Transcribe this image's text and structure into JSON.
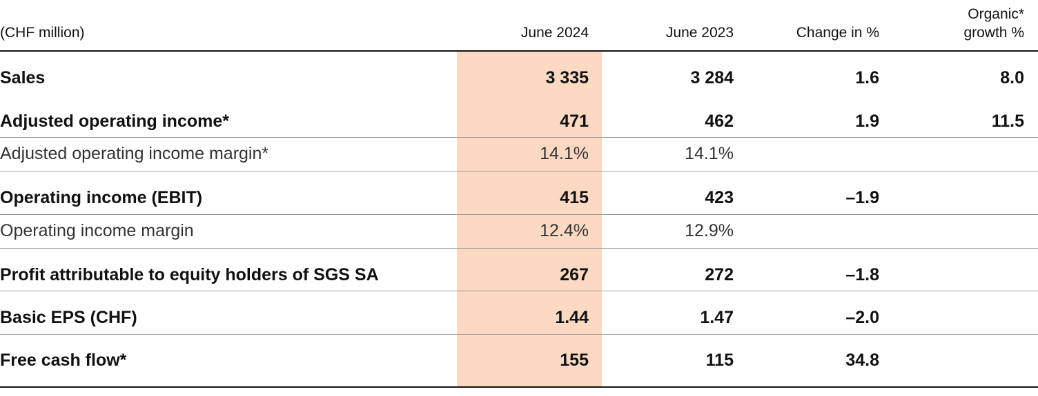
{
  "table": {
    "header": [
      "(CHF million)",
      "June 2024",
      "June 2023",
      "Change in %",
      "Organic*\ngrowth %"
    ],
    "rows": [
      [
        "Sales",
        "3 335",
        "3 284",
        "1.6",
        "8.0"
      ],
      [
        "Adjusted operating income*",
        "471",
        "462",
        "1.9",
        "11.5"
      ],
      [
        "Adjusted operating income margin*",
        "14.1%",
        "14.1%"
      ],
      [
        "Operating income (EBIT)",
        "415",
        "423",
        "–1.9"
      ],
      [
        "Operating income margin",
        "12.4%",
        "12.9%"
      ],
      [
        "Profit attributable to equity holders of SGS SA",
        "267",
        "272",
        "–1.8"
      ],
      [
        "Basic EPS (CHF)",
        "1.44",
        "1.47",
        "–2.0"
      ],
      [
        "Free cash flow*",
        "155",
        "115",
        "34.8"
      ]
    ]
  }
}
